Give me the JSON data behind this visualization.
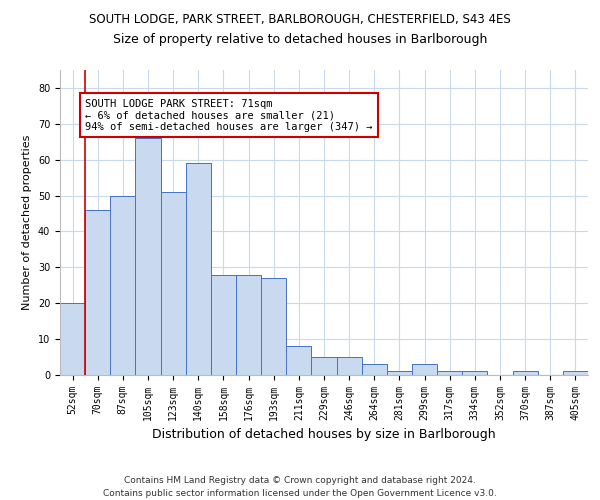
{
  "title1": "SOUTH LODGE, PARK STREET, BARLBOROUGH, CHESTERFIELD, S43 4ES",
  "title2": "Size of property relative to detached houses in Barlborough",
  "xlabel": "Distribution of detached houses by size in Barlborough",
  "ylabel": "Number of detached properties",
  "footer1": "Contains HM Land Registry data © Crown copyright and database right 2024.",
  "footer2": "Contains public sector information licensed under the Open Government Licence v3.0.",
  "categories": [
    "52sqm",
    "70sqm",
    "87sqm",
    "105sqm",
    "123sqm",
    "140sqm",
    "158sqm",
    "176sqm",
    "193sqm",
    "211sqm",
    "229sqm",
    "246sqm",
    "264sqm",
    "281sqm",
    "299sqm",
    "317sqm",
    "334sqm",
    "352sqm",
    "370sqm",
    "387sqm",
    "405sqm"
  ],
  "values": [
    20,
    46,
    50,
    66,
    51,
    59,
    28,
    28,
    27,
    8,
    5,
    5,
    3,
    1,
    3,
    1,
    1,
    0,
    1,
    0,
    1
  ],
  "bar_color": "#c8d9f0",
  "bar_edge_color": "#4472c4",
  "annotation_box_text": "SOUTH LODGE PARK STREET: 71sqm\n← 6% of detached houses are smaller (21)\n94% of semi-detached houses are larger (347) →",
  "annotation_box_color": "#ffffff",
  "annotation_box_edge_color": "#cc0000",
  "property_line_x": 1,
  "ylim": [
    0,
    85
  ],
  "yticks": [
    0,
    10,
    20,
    30,
    40,
    50,
    60,
    70,
    80
  ],
  "background_color": "#ffffff",
  "grid_color": "#c8d9f0",
  "title1_fontsize": 8.5,
  "title2_fontsize": 9,
  "xlabel_fontsize": 9,
  "ylabel_fontsize": 8,
  "tick_fontsize": 7,
  "annotation_fontsize": 7.5,
  "footer_fontsize": 6.5
}
